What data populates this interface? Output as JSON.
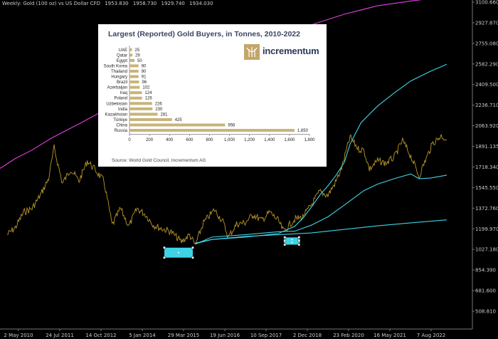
{
  "header": {
    "symbol": "Weekly:  Gold (100 oz) vs US Dollar CFD",
    "ohlc": [
      "1953.830",
      "1958.730",
      "1929.740",
      "1934.030"
    ]
  },
  "colors": {
    "background": "#000000",
    "price": "#b8962a",
    "upper_envelope": "#e040e0",
    "channel": "#3fd3e6",
    "marker": "#3fd3e6",
    "gold_bar": "#c8b47a"
  },
  "chart_data": [
    {
      "type": "line",
      "y_axis_ticks": [
        "3100.660",
        "2927.870",
        "2755.080",
        "2582.290",
        "2409.500",
        "2236.710",
        "2063.920",
        "1891.135",
        "1718.340",
        "1545.550",
        "1372.760",
        "1199.970",
        "1027.180",
        "854.390",
        "681.600",
        "508.810"
      ],
      "x_axis_ticks": [
        "2 May 2010",
        "24 Jul 2011",
        "14 Oct 2012",
        "5 Jan 2014",
        "29 Mar 2015",
        "19 Jun 2016",
        "10 Sep 2017",
        "2 Dec 2018",
        "23 Feb 2020",
        "16 May 2021",
        "7 Aug 2022"
      ],
      "ylim": [
        508.81,
        3100.66
      ],
      "series": [
        {
          "key": "price",
          "x": [
            "2010-04",
            "2010-07",
            "2010-10",
            "2011-01",
            "2011-04",
            "2011-07",
            "2011-09",
            "2011-12",
            "2012-03",
            "2012-06",
            "2012-09",
            "2012-12",
            "2013-03",
            "2013-06",
            "2013-09",
            "2013-12",
            "2014-03",
            "2014-06",
            "2014-09",
            "2014-12",
            "2015-03",
            "2015-07",
            "2015-10",
            "2015-12",
            "2016-03",
            "2016-07",
            "2016-10",
            "2016-12",
            "2017-03",
            "2017-06",
            "2017-09",
            "2017-12",
            "2018-03",
            "2018-06",
            "2018-08",
            "2018-12",
            "2019-03",
            "2019-06",
            "2019-09",
            "2019-12",
            "2020-03",
            "2020-05",
            "2020-08",
            "2020-11",
            "2021-01",
            "2021-03",
            "2021-06",
            "2021-09",
            "2021-12",
            "2022-03",
            "2022-06",
            "2022-09",
            "2022-11",
            "2023-02",
            "2023-05",
            "2023-07"
          ],
          "y": [
            1150,
            1210,
            1340,
            1370,
            1480,
            1620,
            1880,
            1580,
            1700,
            1600,
            1770,
            1690,
            1600,
            1230,
            1370,
            1220,
            1370,
            1320,
            1230,
            1200,
            1180,
            1090,
            1150,
            1060,
            1250,
            1360,
            1260,
            1130,
            1240,
            1250,
            1320,
            1270,
            1340,
            1270,
            1180,
            1280,
            1300,
            1400,
            1510,
            1480,
            1600,
            1710,
            1970,
            1870,
            1860,
            1700,
            1770,
            1750,
            1800,
            1940,
            1810,
            1640,
            1760,
            1920,
            1980,
            1950
          ]
        },
        {
          "key": "upper_envelope",
          "x": [
            "2009-09",
            "2010-01",
            "2010-07",
            "2011-01",
            "2011-08",
            "2012-06",
            "2013-06",
            "2014-06",
            "2015-06",
            "2016-06",
            "2017-06",
            "2018-06",
            "2019-06",
            "2020-06",
            "2021-06",
            "2022-06",
            "2023-01"
          ],
          "y": [
            1640,
            1700,
            1790,
            1860,
            1960,
            2080,
            2230,
            2380,
            2500,
            2620,
            2720,
            2820,
            2910,
            3000,
            3070,
            3110,
            3130
          ]
        },
        {
          "key": "channel_upper",
          "x": [
            "2015-12",
            "2016-06",
            "2017-06",
            "2018-06",
            "2018-12",
            "2019-03",
            "2019-06",
            "2019-09",
            "2019-12",
            "2020-03",
            "2020-06",
            "2020-08",
            "2020-12",
            "2021-06",
            "2021-12",
            "2022-06",
            "2023-01",
            "2023-07"
          ],
          "y": [
            1080,
            1110,
            1130,
            1160,
            1220,
            1290,
            1380,
            1480,
            1560,
            1650,
            1760,
            1910,
            2090,
            2230,
            2340,
            2440,
            2520,
            2580
          ]
        },
        {
          "key": "channel_middle",
          "x": [
            "2015-12",
            "2016-06",
            "2017-06",
            "2018-06",
            "2018-12",
            "2019-06",
            "2019-12",
            "2020-06",
            "2021-01",
            "2021-06",
            "2021-12",
            "2022-06",
            "2022-09",
            "2023-01",
            "2023-07"
          ],
          "y": [
            1070,
            1130,
            1150,
            1175,
            1180,
            1230,
            1300,
            1400,
            1520,
            1575,
            1620,
            1660,
            1620,
            1625,
            1650
          ]
        },
        {
          "key": "channel_lower",
          "x": [
            "2015-12",
            "2016-06",
            "2017-06",
            "2018-06",
            "2019-06",
            "2020-06",
            "2021-06",
            "2022-06",
            "2023-07"
          ],
          "y": [
            1075,
            1110,
            1135,
            1150,
            1165,
            1195,
            1225,
            1250,
            1275
          ]
        }
      ],
      "markers": [
        {
          "x": "2015-06",
          "y": 1000
        },
        {
          "x": "2018-11",
          "y": 1110
        },
        {
          "x": "2018-11",
          "y": 1085
        }
      ]
    },
    {
      "type": "bar",
      "title": "Largest (Reported) Gold Buyers, in Tonnes, 2010-2022",
      "source": "Source: World Gold Council, Incrementum AG",
      "logo_text": "incrementum",
      "categories": [
        "UAE",
        "Qatar",
        "Egypt",
        "South Korea",
        "Thailand",
        "Hungary",
        "Brazil",
        "Azerbaijan",
        "Iraq",
        "Poland",
        "Uzbekistan",
        "India",
        "Kazakhstan",
        "Türkiye",
        "China",
        "Russia"
      ],
      "values": [
        25,
        29,
        50,
        90,
        90,
        91,
        96,
        102,
        124,
        126,
        226,
        230,
        281,
        425,
        956,
        1650
      ],
      "value_labels": [
        "25",
        "29",
        "50",
        "90",
        "90",
        "91",
        "96",
        "102",
        "124",
        "126",
        "226",
        "230",
        "281",
        "425",
        "956",
        "1,650"
      ],
      "x_ticks": [
        "0",
        "200",
        "400",
        "600",
        "800",
        "1,000",
        "1,200",
        "1,400",
        "1,600",
        "1,800"
      ],
      "xlim": [
        0,
        1800
      ]
    }
  ]
}
